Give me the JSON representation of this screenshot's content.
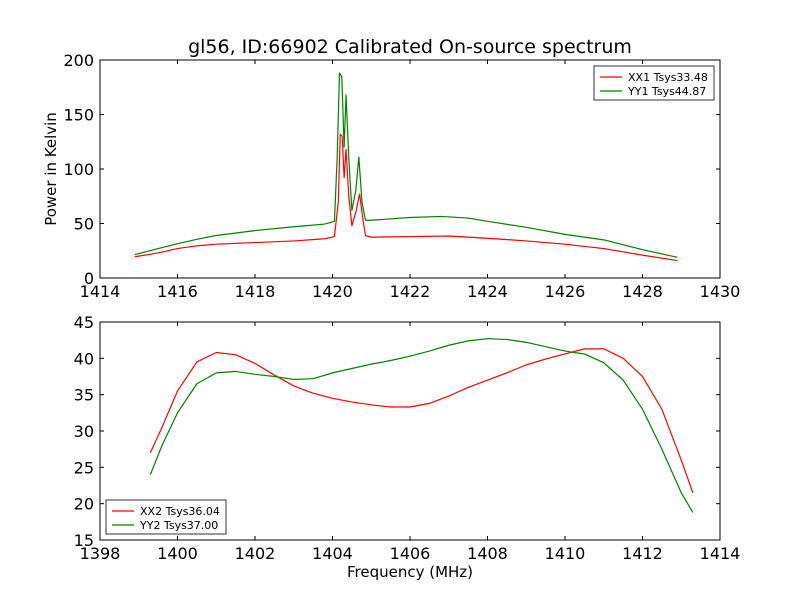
{
  "chart_data": [
    {
      "type": "line",
      "title": "gl56, ID:66902 Calibrated On-source spectrum",
      "xlabel": "",
      "ylabel": "Power in Kelvin",
      "xlim": [
        1414,
        1430
      ],
      "ylim": [
        0,
        200
      ],
      "xticks": [
        "1414",
        "1416",
        "1418",
        "1420",
        "1422",
        "1424",
        "1426",
        "1428",
        "1430"
      ],
      "yticks": [
        "0",
        "50",
        "100",
        "150",
        "200"
      ],
      "legend_position": "top-right",
      "grid": false,
      "series": [
        {
          "name": "XX1 Tsys33.48",
          "color": "#ff0000",
          "points": [
            [
              1414.9,
              19.5
            ],
            [
              1415.5,
              23
            ],
            [
              1416,
              27
            ],
            [
              1416.5,
              29.5
            ],
            [
              1417,
              31
            ],
            [
              1418,
              32.5
            ],
            [
              1419,
              34
            ],
            [
              1419.8,
              36
            ],
            [
              1420.05,
              38
            ],
            [
              1420.15,
              70
            ],
            [
              1420.2,
              132
            ],
            [
              1420.25,
              130
            ],
            [
              1420.3,
              92
            ],
            [
              1420.35,
              118
            ],
            [
              1420.42,
              75
            ],
            [
              1420.5,
              48
            ],
            [
              1420.6,
              60
            ],
            [
              1420.7,
              77
            ],
            [
              1420.78,
              55
            ],
            [
              1420.85,
              39
            ],
            [
              1421,
              37.5
            ],
            [
              1422,
              38
            ],
            [
              1423,
              38.5
            ],
            [
              1424,
              36.5
            ],
            [
              1425,
              34
            ],
            [
              1426,
              31
            ],
            [
              1427,
              27
            ],
            [
              1428,
              21
            ],
            [
              1428.9,
              16
            ]
          ]
        },
        {
          "name": "YY1 Tsys44.87",
          "color": "#008000",
          "points": [
            [
              1414.9,
              21.5
            ],
            [
              1415.5,
              27
            ],
            [
              1416,
              31.5
            ],
            [
              1416.5,
              35.5
            ],
            [
              1417,
              39
            ],
            [
              1418,
              43.5
            ],
            [
              1419,
              47
            ],
            [
              1419.8,
              49.5
            ],
            [
              1420.05,
              52
            ],
            [
              1420.12,
              110
            ],
            [
              1420.18,
              188
            ],
            [
              1420.24,
              185
            ],
            [
              1420.3,
              120
            ],
            [
              1420.35,
              168
            ],
            [
              1420.42,
              110
            ],
            [
              1420.5,
              62
            ],
            [
              1420.6,
              80
            ],
            [
              1420.68,
              111
            ],
            [
              1420.76,
              70
            ],
            [
              1420.85,
              53
            ],
            [
              1421,
              53
            ],
            [
              1422,
              55.5
            ],
            [
              1422.8,
              56.5
            ],
            [
              1423.5,
              55
            ],
            [
              1424,
              52
            ],
            [
              1425,
              46.5
            ],
            [
              1426,
              40
            ],
            [
              1427,
              35
            ],
            [
              1428,
              26
            ],
            [
              1428.9,
              19
            ]
          ]
        }
      ]
    },
    {
      "type": "line",
      "title": "",
      "xlabel": "Frequency (MHz)",
      "ylabel": "",
      "xlim": [
        1398,
        1414
      ],
      "ylim": [
        15,
        45
      ],
      "xticks": [
        "1398",
        "1400",
        "1402",
        "1404",
        "1406",
        "1408",
        "1410",
        "1412",
        "1414"
      ],
      "yticks": [
        "15",
        "20",
        "25",
        "30",
        "35",
        "40",
        "45"
      ],
      "legend_position": "bottom-left",
      "grid": false,
      "series": [
        {
          "name": "XX2 Tsys36.04",
          "color": "#ff0000",
          "points": [
            [
              1399.3,
              27
            ],
            [
              1399.6,
              30.5
            ],
            [
              1400,
              35.5
            ],
            [
              1400.5,
              39.5
            ],
            [
              1401,
              40.8
            ],
            [
              1401.5,
              40.5
            ],
            [
              1402,
              39.3
            ],
            [
              1402.5,
              37.7
            ],
            [
              1403,
              36.2
            ],
            [
              1403.5,
              35.2
            ],
            [
              1404,
              34.5
            ],
            [
              1404.5,
              34
            ],
            [
              1405,
              33.6
            ],
            [
              1405.5,
              33.3
            ],
            [
              1406,
              33.3
            ],
            [
              1406.5,
              33.8
            ],
            [
              1407,
              34.8
            ],
            [
              1407.5,
              36
            ],
            [
              1408,
              37
            ],
            [
              1408.5,
              38
            ],
            [
              1409,
              39.1
            ],
            [
              1409.5,
              39.9
            ],
            [
              1410,
              40.6
            ],
            [
              1410.5,
              41.3
            ],
            [
              1411,
              41.3
            ],
            [
              1411.5,
              40
            ],
            [
              1412,
              37.5
            ],
            [
              1412.5,
              33
            ],
            [
              1413,
              26
            ],
            [
              1413.3,
              21.5
            ]
          ]
        },
        {
          "name": "YY2 Tsys37.00",
          "color": "#008000",
          "points": [
            [
              1399.3,
              24
            ],
            [
              1399.6,
              28
            ],
            [
              1400,
              32.5
            ],
            [
              1400.5,
              36.5
            ],
            [
              1401,
              38
            ],
            [
              1401.5,
              38.2
            ],
            [
              1402,
              37.8
            ],
            [
              1402.5,
              37.5
            ],
            [
              1403,
              37.1
            ],
            [
              1403.5,
              37.2
            ],
            [
              1404,
              38
            ],
            [
              1404.5,
              38.6
            ],
            [
              1405,
              39.2
            ],
            [
              1405.5,
              39.7
            ],
            [
              1406,
              40.3
            ],
            [
              1406.5,
              41
            ],
            [
              1407,
              41.8
            ],
            [
              1407.5,
              42.4
            ],
            [
              1408,
              42.7
            ],
            [
              1408.5,
              42.6
            ],
            [
              1409,
              42.2
            ],
            [
              1409.5,
              41.6
            ],
            [
              1410,
              41
            ],
            [
              1410.5,
              40.6
            ],
            [
              1411,
              39.4
            ],
            [
              1411.5,
              37
            ],
            [
              1412,
              33
            ],
            [
              1412.5,
              27.5
            ],
            [
              1413,
              21.5
            ],
            [
              1413.3,
              18.8
            ]
          ]
        }
      ]
    }
  ]
}
